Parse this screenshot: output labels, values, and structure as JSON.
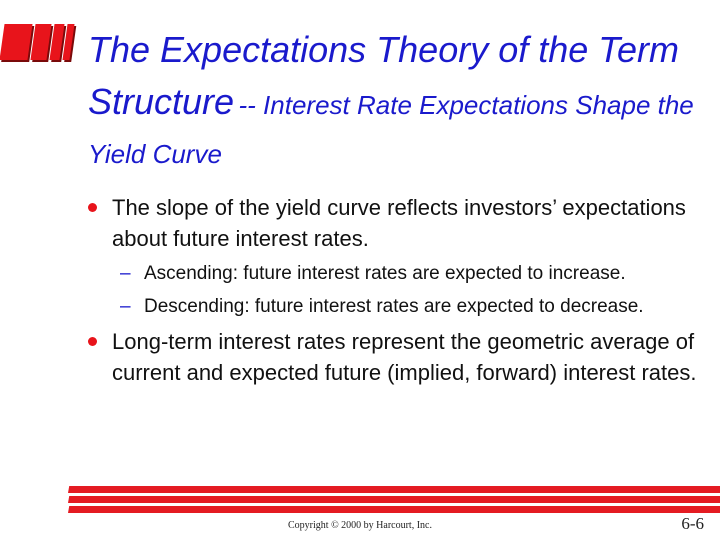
{
  "title": {
    "main": "The Expectations Theory of the Term Structure",
    "sub": "-- Interest Rate Expectations Shape the Yield Curve"
  },
  "bullets": [
    {
      "text": "The slope of the yield curve reflects investors’ expectations about future interest rates.",
      "subitems": [
        "Ascending: future interest rates are expected to increase.",
        "Descending: future interest rates are expected to decrease."
      ]
    },
    {
      "text": "Long-term interest rates represent the geometric average of current and expected future (implied, forward) interest rates."
    }
  ],
  "footer": {
    "copyright": "Copyright © 2000 by Harcourt, Inc.",
    "page_number": "6-6"
  },
  "colors": {
    "accent": "#e41b22",
    "title": "#1a1acc"
  }
}
